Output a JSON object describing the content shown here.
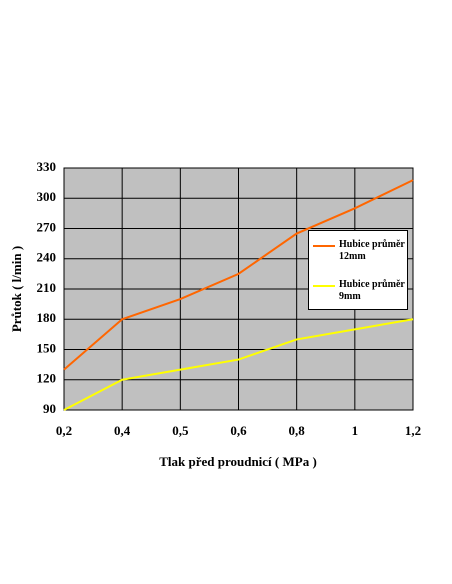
{
  "chart_data": {
    "type": "line",
    "xlabel": "Tlak před proudnicí ( MPa )",
    "ylabel": "Průtok  ( l/min )",
    "categories": [
      "0,2",
      "0,4",
      "0,5",
      "0,6",
      "0,8",
      "1",
      "1,2"
    ],
    "series": [
      {
        "name": "Hubice průměr 12mm",
        "color": "#ff6600",
        "values": [
          130,
          180,
          200,
          225,
          265,
          290,
          318
        ]
      },
      {
        "name": "Hubice průměr 9mm",
        "color": "#ffff00",
        "values": [
          90,
          120,
          130,
          140,
          160,
          170,
          180
        ]
      }
    ],
    "ylim": [
      90,
      330
    ],
    "yticks": [
      90,
      120,
      150,
      180,
      210,
      240,
      270,
      300,
      330
    ],
    "grid": true
  }
}
